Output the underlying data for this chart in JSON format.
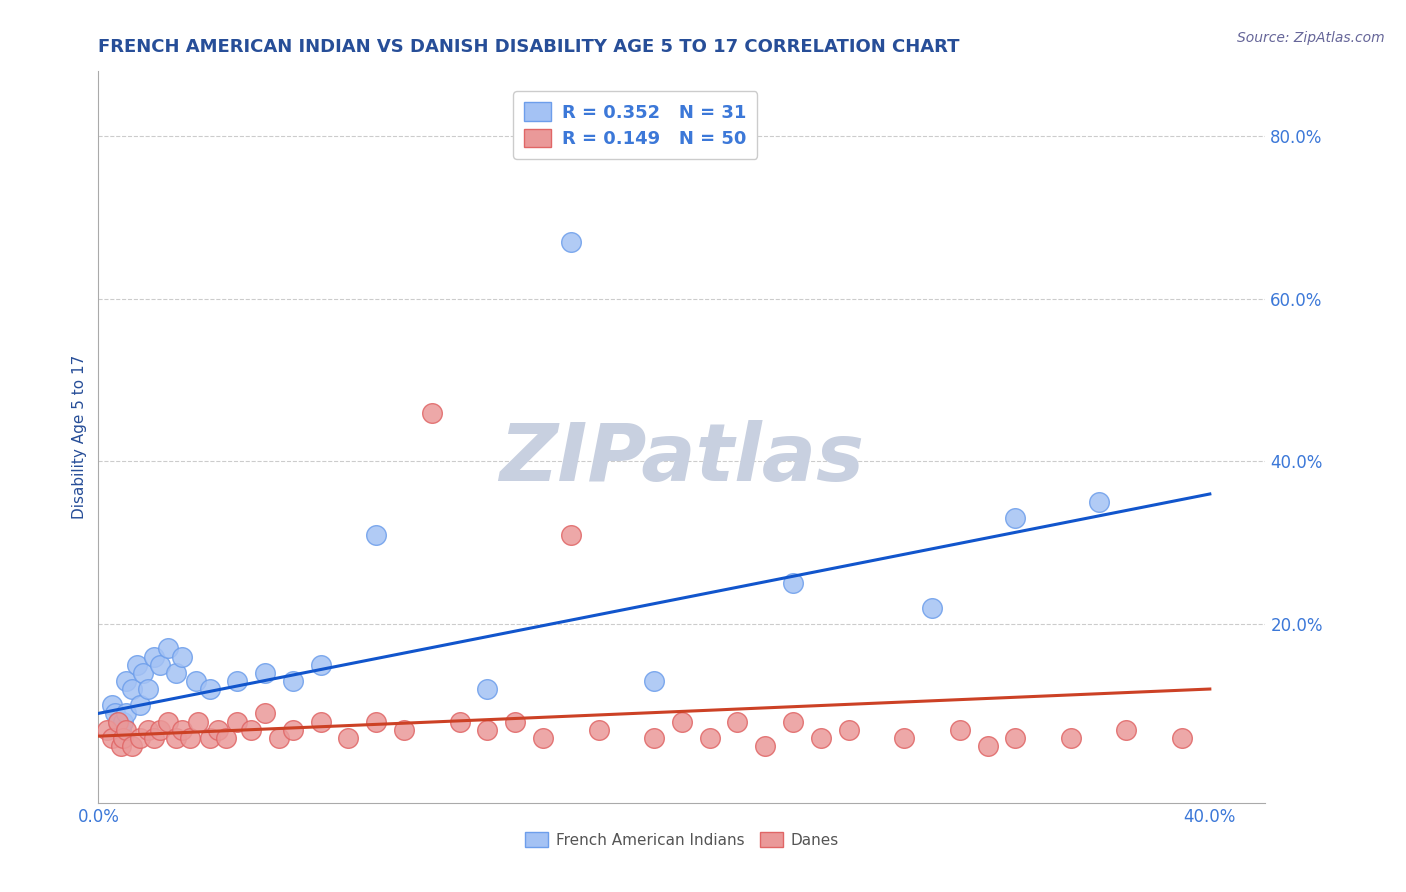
{
  "title": "FRENCH AMERICAN INDIAN VS DANISH DISABILITY AGE 5 TO 17 CORRELATION CHART",
  "source": "Source: ZipAtlas.com",
  "ylabel": "Disability Age 5 to 17",
  "xlim": [
    0.0,
    0.42
  ],
  "ylim": [
    -0.02,
    0.88
  ],
  "xticks": [
    0.0,
    0.05,
    0.1,
    0.15,
    0.2,
    0.25,
    0.3,
    0.35,
    0.4
  ],
  "yticks": [
    0.0,
    0.2,
    0.4,
    0.6,
    0.8
  ],
  "blue_R": 0.352,
  "blue_N": 31,
  "pink_R": 0.149,
  "pink_N": 50,
  "blue_label": "French American Indians",
  "pink_label": "Danes",
  "blue_color": "#a4c2f4",
  "pink_color": "#ea9999",
  "blue_edge_color": "#6d9eeb",
  "pink_edge_color": "#e06666",
  "blue_line_color": "#1155cc",
  "pink_line_color": "#cc4125",
  "watermark": "ZIPatlas",
  "watermark_color": "#c8d0e0",
  "blue_scatter_x": [
    0.005,
    0.006,
    0.007,
    0.008,
    0.009,
    0.01,
    0.01,
    0.012,
    0.014,
    0.015,
    0.016,
    0.018,
    0.02,
    0.022,
    0.025,
    0.028,
    0.03,
    0.035,
    0.04,
    0.05,
    0.06,
    0.07,
    0.08,
    0.1,
    0.14,
    0.17,
    0.2,
    0.25,
    0.3,
    0.33,
    0.36
  ],
  "blue_scatter_y": [
    0.1,
    0.09,
    0.08,
    0.07,
    0.08,
    0.09,
    0.13,
    0.12,
    0.15,
    0.1,
    0.14,
    0.12,
    0.16,
    0.15,
    0.17,
    0.14,
    0.16,
    0.13,
    0.12,
    0.13,
    0.14,
    0.13,
    0.15,
    0.31,
    0.12,
    0.67,
    0.13,
    0.25,
    0.22,
    0.33,
    0.35
  ],
  "pink_scatter_x": [
    0.003,
    0.005,
    0.007,
    0.008,
    0.009,
    0.01,
    0.012,
    0.015,
    0.018,
    0.02,
    0.022,
    0.025,
    0.028,
    0.03,
    0.033,
    0.036,
    0.04,
    0.043,
    0.046,
    0.05,
    0.055,
    0.06,
    0.065,
    0.07,
    0.08,
    0.09,
    0.1,
    0.11,
    0.12,
    0.13,
    0.14,
    0.15,
    0.16,
    0.17,
    0.18,
    0.2,
    0.21,
    0.22,
    0.23,
    0.24,
    0.25,
    0.26,
    0.27,
    0.29,
    0.31,
    0.32,
    0.33,
    0.35,
    0.37,
    0.39
  ],
  "pink_scatter_y": [
    0.07,
    0.06,
    0.08,
    0.05,
    0.06,
    0.07,
    0.05,
    0.06,
    0.07,
    0.06,
    0.07,
    0.08,
    0.06,
    0.07,
    0.06,
    0.08,
    0.06,
    0.07,
    0.06,
    0.08,
    0.07,
    0.09,
    0.06,
    0.07,
    0.08,
    0.06,
    0.08,
    0.07,
    0.46,
    0.08,
    0.07,
    0.08,
    0.06,
    0.31,
    0.07,
    0.06,
    0.08,
    0.06,
    0.08,
    0.05,
    0.08,
    0.06,
    0.07,
    0.06,
    0.07,
    0.05,
    0.06,
    0.06,
    0.07,
    0.06
  ],
  "blue_line_x": [
    0.0,
    0.4
  ],
  "blue_line_y_start": 0.09,
  "blue_line_y_end": 0.36,
  "pink_line_x": [
    0.0,
    0.4
  ],
  "pink_line_y_start": 0.062,
  "pink_line_y_end": 0.12,
  "background_color": "#ffffff",
  "grid_color": "#cccccc",
  "axis_color": "#3c78d8",
  "title_color": "#274e98",
  "label_color": "#274e98",
  "legend_text_color": "#000000",
  "legend_num_color": "#3c78d8"
}
